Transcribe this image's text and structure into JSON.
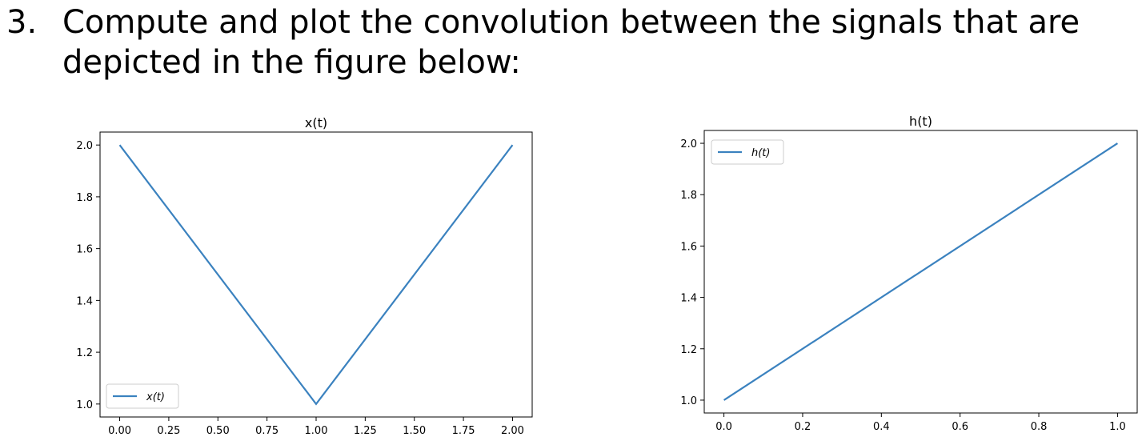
{
  "question": {
    "number": "3.",
    "line1": "Compute and plot the convolution between the signals that are",
    "line2": "depicted in the figure below:"
  },
  "colors": {
    "series": "#3b82bf"
  },
  "chart_data": [
    {
      "type": "line",
      "title": "x(t)",
      "xlabel": "",
      "ylabel": "",
      "xlim": [
        -0.1,
        2.1
      ],
      "ylim": [
        0.95,
        2.05
      ],
      "xticks": [
        0.0,
        0.25,
        0.5,
        0.75,
        1.0,
        1.25,
        1.5,
        1.75,
        2.0
      ],
      "xtick_labels": [
        "0.00",
        "0.25",
        "0.50",
        "0.75",
        "1.00",
        "1.25",
        "1.50",
        "1.75",
        "2.00"
      ],
      "yticks": [
        1.0,
        1.2,
        1.4,
        1.6,
        1.8,
        2.0
      ],
      "ytick_labels": [
        "1.0",
        "1.2",
        "1.4",
        "1.6",
        "1.8",
        "2.0"
      ],
      "grid": false,
      "legend_position": "lower-left",
      "series": [
        {
          "name": "x(t)",
          "x": [
            0.0,
            1.0,
            2.0
          ],
          "y": [
            2.0,
            1.0,
            2.0
          ]
        }
      ]
    },
    {
      "type": "line",
      "title": "h(t)",
      "xlabel": "",
      "ylabel": "",
      "xlim": [
        -0.05,
        1.05
      ],
      "ylim": [
        0.95,
        2.05
      ],
      "xticks": [
        0.0,
        0.2,
        0.4,
        0.6,
        0.8,
        1.0
      ],
      "xtick_labels": [
        "0.0",
        "0.2",
        "0.4",
        "0.6",
        "0.8",
        "1.0"
      ],
      "yticks": [
        1.0,
        1.2,
        1.4,
        1.6,
        1.8,
        2.0
      ],
      "ytick_labels": [
        "1.0",
        "1.2",
        "1.4",
        "1.6",
        "1.8",
        "2.0"
      ],
      "grid": false,
      "legend_position": "upper-left",
      "series": [
        {
          "name": "h(t)",
          "x": [
            0.0,
            1.0
          ],
          "y": [
            1.0,
            2.0
          ]
        }
      ]
    }
  ]
}
